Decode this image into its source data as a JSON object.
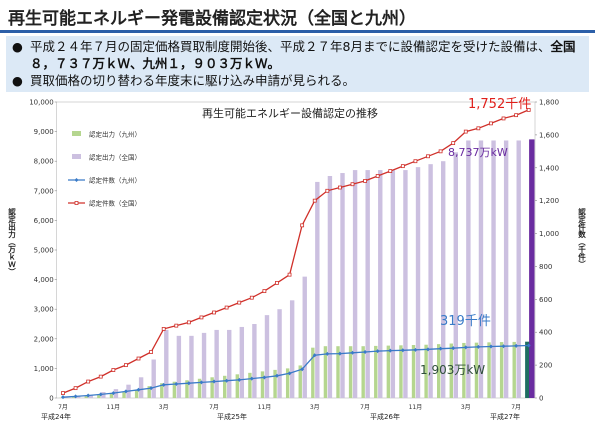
{
  "header": {
    "title": "再生可能エネルギー発電設備認定状況（全国と九州）"
  },
  "bullets": [
    [
      {
        "text": "平成２４年７月の固定価格買取制度開始後、平成２７年8月までに設備認定を受けた設備は、",
        "bold": false
      },
      {
        "text": "全国８，７３７万ｋＷ、九州１，９０３万ｋＷ。",
        "bold": true
      }
    ],
    [
      {
        "text": "買取価格の切り替わる年度末に駆け込み申請が見られる。",
        "bold": false
      }
    ]
  ],
  "chart_data": {
    "type": "bar_line",
    "title": "再生可能エネルギー設備認定の推移",
    "y_label": "認定出力（万ｋＷ）",
    "y2_label": "認定件数（千件）",
    "categories": [
      "7月",
      null,
      null,
      null,
      "11月",
      null,
      null,
      null,
      "3月",
      null,
      null,
      null,
      "7月",
      null,
      null,
      null,
      "11月",
      null,
      null,
      null,
      "3月",
      null,
      null,
      null,
      "7月",
      null,
      null,
      null,
      "11月",
      null,
      null,
      null,
      "3月",
      null,
      null,
      null,
      "7月",
      null
    ],
    "year_labels": [
      "平成24年",
      "平成25年",
      "平成26年",
      "平成27年"
    ],
    "ylim": [
      0,
      10000
    ],
    "yticks": [
      0,
      {
        "value": 1000,
        "label": "1,000"
      },
      {
        "value": 2000,
        "label": "2,000"
      },
      {
        "value": 3000,
        "label": "3,000"
      },
      {
        "value": 4000,
        "label": "4,000"
      },
      {
        "value": 5000,
        "label": "5,000"
      },
      {
        "value": 6000,
        "label": "6,000"
      },
      {
        "value": 7000,
        "label": "7,000"
      },
      {
        "value": 8000,
        "label": "8,000"
      },
      {
        "value": 9000,
        "label": "9,000"
      },
      {
        "value": 10000,
        "label": "10,000"
      }
    ],
    "y2lim": [
      0,
      1800
    ],
    "y2ticks": [
      0,
      200,
      400,
      600,
      800,
      {
        "value": 1000,
        "label": "1,000"
      },
      {
        "value": 1200,
        "label": "1,200"
      },
      {
        "value": 1400,
        "label": "1,400"
      },
      {
        "value": 1600,
        "label": "1,600"
      },
      {
        "value": 1800,
        "label": "1,800"
      }
    ],
    "series": [
      {
        "name": "認定出力（九州）",
        "kind": "bar",
        "color": "#b5d68f",
        "highlight_last_color": "#1f6e62",
        "values": [
          10,
          30,
          60,
          100,
          150,
          200,
          280,
          400,
          500,
          550,
          600,
          650,
          700,
          750,
          800,
          850,
          900,
          950,
          1000,
          1100,
          1700,
          1750,
          1750,
          1750,
          1750,
          1760,
          1770,
          1780,
          1790,
          1800,
          1820,
          1840,
          1860,
          1870,
          1880,
          1890,
          1895,
          1903
        ]
      },
      {
        "name": "認定出力（全国）",
        "kind": "bar",
        "color": "#ccc0e0",
        "highlight_last_color": "#6a2ca0",
        "values": [
          20,
          50,
          100,
          200,
          300,
          450,
          700,
          1300,
          2300,
          2100,
          2100,
          2200,
          2300,
          2300,
          2400,
          2500,
          2800,
          3000,
          3300,
          4100,
          7300,
          7500,
          7600,
          7700,
          7700,
          7700,
          7700,
          7700,
          7800,
          7900,
          8000,
          8300,
          8700,
          8700,
          8700,
          8700,
          8700,
          8737
        ]
      },
      {
        "name": "認定件数（九州）",
        "kind": "line",
        "axis": "y2",
        "color": "#3a7bc8",
        "marker": "diamond",
        "values": [
          5,
          10,
          15,
          22,
          30,
          40,
          50,
          60,
          80,
          85,
          90,
          95,
          100,
          105,
          110,
          118,
          125,
          135,
          150,
          175,
          260,
          268,
          270,
          275,
          280,
          285,
          288,
          290,
          293,
          296,
          300,
          303,
          308,
          311,
          313,
          315,
          317,
          319
        ]
      },
      {
        "name": "認定件数（全国）",
        "kind": "line",
        "axis": "y2",
        "color": "#d0302a",
        "marker": "square",
        "values": [
          30,
          60,
          100,
          130,
          170,
          200,
          240,
          280,
          420,
          440,
          460,
          490,
          520,
          550,
          580,
          610,
          650,
          700,
          750,
          1050,
          1200,
          1260,
          1280,
          1300,
          1320,
          1350,
          1380,
          1410,
          1440,
          1470,
          1500,
          1550,
          1620,
          1640,
          1670,
          1700,
          1720,
          1752
        ]
      }
    ],
    "annotations": [
      {
        "text": "1,752千件",
        "color": "#e0201b"
      },
      {
        "text": "8,737万kW",
        "color": "#6a2ca0"
      },
      {
        "text": "319千件",
        "color": "#3a7bc8"
      },
      {
        "text": "1,903万kW",
        "color": "#2f4f3a"
      }
    ]
  }
}
